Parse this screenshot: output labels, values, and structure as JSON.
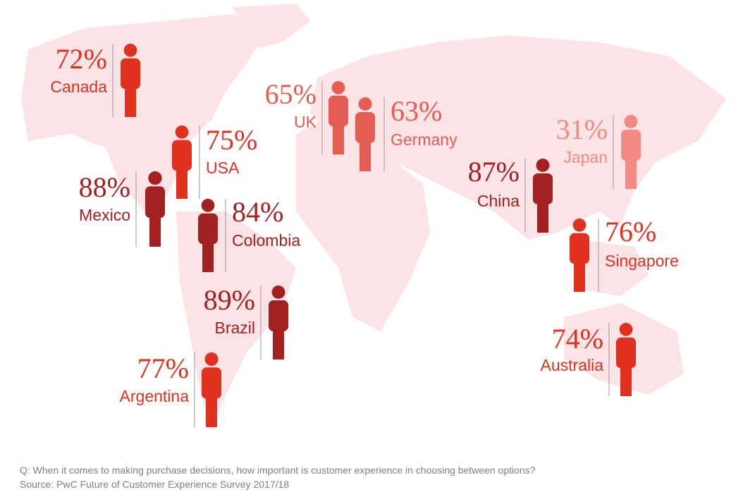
{
  "countries": [
    {
      "value": "72%",
      "name": "Canada"
    },
    {
      "value": "75%",
      "name": "USA"
    },
    {
      "value": "88%",
      "name": "Mexico"
    },
    {
      "value": "84%",
      "name": "Colombia"
    },
    {
      "value": "89%",
      "name": "Brazil"
    },
    {
      "value": "77%",
      "name": "Argentina"
    },
    {
      "value": "65%",
      "name": "UK"
    },
    {
      "value": "63%",
      "name": "Germany"
    },
    {
      "value": "31%",
      "name": "Japan"
    },
    {
      "value": "87%",
      "name": "China"
    },
    {
      "value": "76%",
      "name": "Singapore"
    },
    {
      "value": "74%",
      "name": "Australia"
    }
  ],
  "footnote": {
    "question": "Q: When it comes to making purchase decisions, how important is customer experience in choosing between options?",
    "source": "Source: PwC Future of Customer Experience Survey 2017/18"
  }
}
